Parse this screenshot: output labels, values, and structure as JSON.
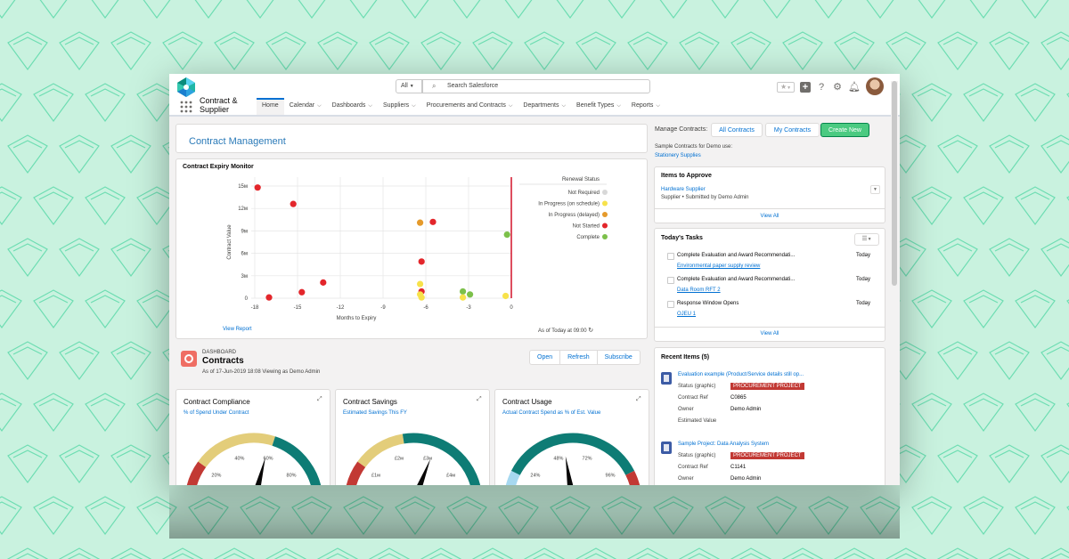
{
  "header": {
    "search_scope": "All",
    "search_placeholder": "Search Salesforce",
    "app_name_line1": "Contract &",
    "app_name_line2": "Supplier"
  },
  "nav": {
    "items": [
      {
        "label": "Home",
        "active": true,
        "has_menu": false
      },
      {
        "label": "Calendar",
        "has_menu": true
      },
      {
        "label": "Dashboards",
        "has_menu": true
      },
      {
        "label": "Suppliers",
        "has_menu": true
      },
      {
        "label": "Procurements and Contracts",
        "has_menu": true
      },
      {
        "label": "Departments",
        "has_menu": true
      },
      {
        "label": "Benefit Types",
        "has_menu": true
      },
      {
        "label": "Reports",
        "has_menu": true
      }
    ]
  },
  "contract_management": {
    "title": "Contract Management"
  },
  "expiry_monitor": {
    "title": "Contract Expiry Monitor",
    "view_report": "View Report",
    "as_of": "As of Today at 09:00"
  },
  "chart_data": {
    "type": "scatter",
    "xlabel": "Months to Expiry",
    "ylabel": "Contract Value",
    "xlim": [
      -18,
      0
    ],
    "ylim": [
      0,
      15
    ],
    "x_ticks": [
      "-18",
      "-15",
      "-12",
      "-9",
      "-6",
      "-3",
      "0"
    ],
    "y_ticks": [
      "0",
      "3м",
      "6м",
      "9м",
      "12м",
      "15м"
    ],
    "legend_title": "Renewal Status",
    "legend_position": "right",
    "categories": [
      {
        "name": "Not Required",
        "color": "#d8d8d8"
      },
      {
        "name": "In Progress (on schedule)",
        "color": "#f7e24b"
      },
      {
        "name": "In Progress (delayed)",
        "color": "#e59a2b"
      },
      {
        "name": "Not Started",
        "color": "#e3262b"
      },
      {
        "name": "Complete",
        "color": "#7cc04a"
      }
    ],
    "points": [
      {
        "x": -17.8,
        "y": 14.8,
        "status": "Not Started"
      },
      {
        "x": -15.3,
        "y": 12.6,
        "status": "Not Started"
      },
      {
        "x": -5.5,
        "y": 10.2,
        "status": "Not Started"
      },
      {
        "x": -6.4,
        "y": 10.1,
        "status": "In Progress (delayed)"
      },
      {
        "x": -0.3,
        "y": 8.5,
        "status": "Complete"
      },
      {
        "x": -6.3,
        "y": 4.9,
        "status": "Not Started"
      },
      {
        "x": -13.2,
        "y": 2.1,
        "status": "Not Started"
      },
      {
        "x": -14.7,
        "y": 0.8,
        "status": "Not Started"
      },
      {
        "x": -17.0,
        "y": 0.1,
        "status": "Not Started"
      },
      {
        "x": -6.4,
        "y": 1.9,
        "status": "In Progress (on schedule)"
      },
      {
        "x": -6.3,
        "y": 0.9,
        "status": "Not Started"
      },
      {
        "x": -6.4,
        "y": 0.5,
        "status": "In Progress (on schedule)"
      },
      {
        "x": -6.3,
        "y": 0.1,
        "status": "In Progress (on schedule)"
      },
      {
        "x": -3.4,
        "y": 0.9,
        "status": "Complete"
      },
      {
        "x": -2.9,
        "y": 0.5,
        "status": "Complete"
      },
      {
        "x": -3.4,
        "y": 0.1,
        "status": "In Progress (on schedule)"
      },
      {
        "x": -0.4,
        "y": 0.3,
        "status": "In Progress (on schedule)"
      }
    ]
  },
  "dashboard": {
    "label": "DASHBOARD",
    "title": "Contracts",
    "subtitle": "As of 17-Jun-2019 18:08 Viewing as Demo Admin",
    "buttons": [
      "Open",
      "Refresh",
      "Subscribe"
    ]
  },
  "gauges": [
    {
      "title": "Contract Compliance",
      "subtitle": "% of Spend Under Contract",
      "ticks": [
        "20%",
        "40%",
        "60%",
        "80%"
      ]
    },
    {
      "title": "Contract Savings",
      "subtitle": "Estimated Savings This FY",
      "ticks": [
        "£1м",
        "£2м",
        "£3м",
        "£4м"
      ]
    },
    {
      "title": "Contract Usage",
      "subtitle": "Actual Contract Spend as % of Est. Value",
      "ticks": [
        "24%",
        "48%",
        "72%",
        "96%"
      ]
    }
  ],
  "manage": {
    "label": "Manage Contracts:",
    "buttons": [
      "All Contracts",
      "My Contracts"
    ],
    "create": "Create New",
    "sample_label": "Sample Contracts for Demo use:",
    "sample_link": "Stationery Supplies"
  },
  "approve": {
    "title": "Items to Approve",
    "item_link": "Hardware Supplier",
    "item_meta": "Supplier • Submitted by Demo Admin",
    "view_all": "View All"
  },
  "tasks": {
    "title": "Today's Tasks",
    "items": [
      {
        "title": "Complete Evaluation and Award Recommendati...",
        "due": "Today",
        "link": "Environmental paper supply review"
      },
      {
        "title": "Complete Evaluation and Award Recommendati...",
        "due": "Today",
        "link": "Data Room RFT 2"
      },
      {
        "title": "Response Window Opens",
        "due": "Today",
        "link": "OJEU 1"
      }
    ],
    "view_all": "View All"
  },
  "recent": {
    "title": "Recent Items (5)",
    "items": [
      {
        "title": "Evaluation example (Product/Service details still op...",
        "badge": "PROCUREMENT PROJECT",
        "fields": [
          {
            "label": "Status (graphic)",
            "value": ""
          },
          {
            "label": "Contract Ref",
            "value": "C0865"
          },
          {
            "label": "Owner",
            "value": "Demo Admin"
          },
          {
            "label": "Estimated Value",
            "value": ""
          }
        ]
      },
      {
        "title": "Sample Project: Data Analysis System",
        "badge": "PROCUREMENT PROJECT",
        "fields": [
          {
            "label": "Status (graphic)",
            "value": ""
          },
          {
            "label": "Contract Ref",
            "value": "C1141"
          },
          {
            "label": "Owner",
            "value": "Demo Admin"
          }
        ]
      }
    ]
  },
  "colors": {
    "brand_blue": "#0070d2",
    "create_green": "#4bca81",
    "badge_red": "#c23934",
    "gauge_teal": "#0e7c75",
    "gauge_yellow": "#e3cd7a",
    "gauge_red": "#c23934",
    "gauge_lightblue": "#a6d8f0"
  }
}
